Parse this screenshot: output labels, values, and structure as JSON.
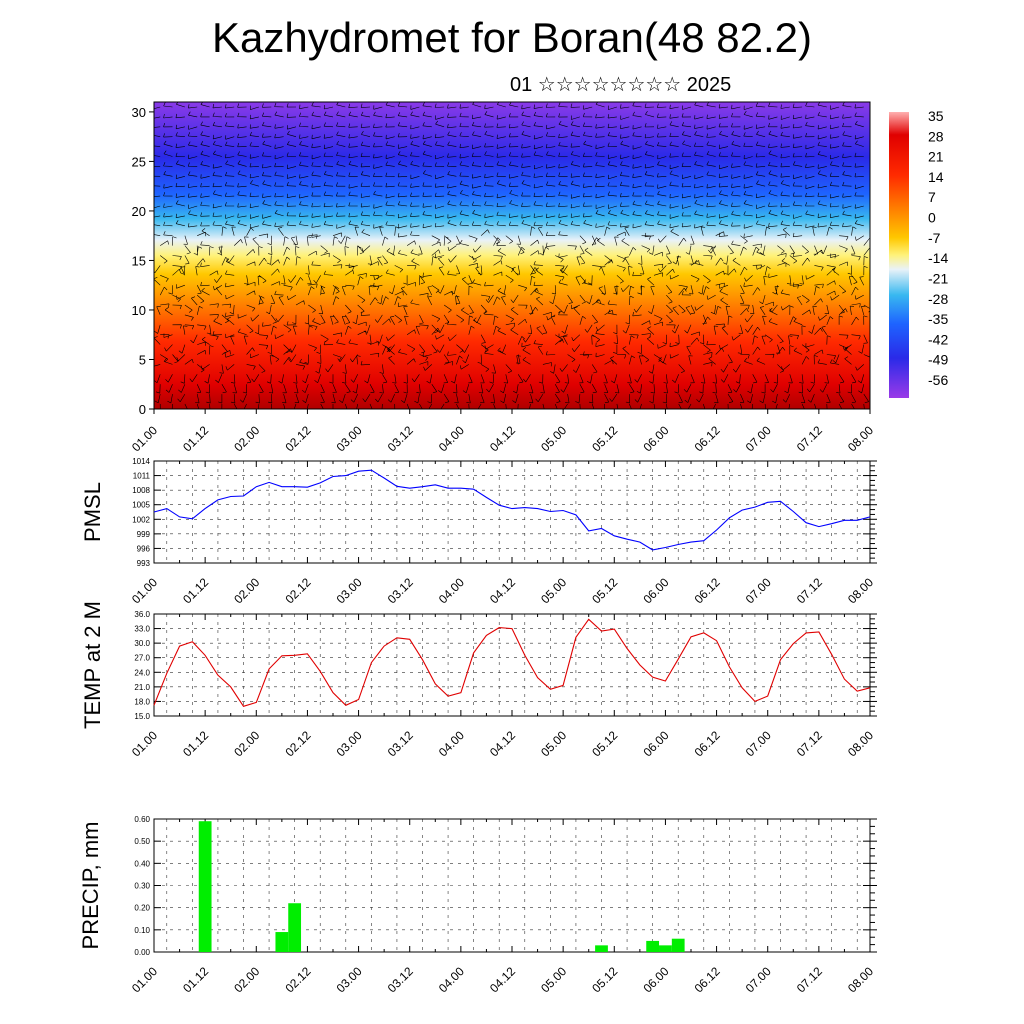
{
  "header": {
    "title": "Kazhydromet for Boran(48 82.2)",
    "subtitle": "01 ☆☆☆☆☆☆☆☆ 2025"
  },
  "colors": {
    "pmsl_line": "#0000ff",
    "temp_line": "#e00000",
    "precip_bar": "#00ee00"
  },
  "chart_data": [
    {
      "id": "cross-section",
      "type": "heatmap",
      "title": "",
      "xlabel": "",
      "ylabel": "",
      "x_ticks": [
        "01.00",
        "01.12",
        "02.00",
        "02.12",
        "03.00",
        "03.12",
        "04.00",
        "04.12",
        "05.00",
        "05.12",
        "06.00",
        "06.12",
        "07.00",
        "07.12",
        "08.00"
      ],
      "y_ticks": [
        0,
        5,
        10,
        15,
        20,
        25,
        30
      ],
      "ylim": [
        0,
        31
      ],
      "colorbar_labels": [
        "35",
        "28",
        "21",
        "14",
        "7",
        "0",
        "-7",
        "-14",
        "-21",
        "-28",
        "-35",
        "-42",
        "-49",
        "-56"
      ],
      "overlay": "wind-barbs"
    },
    {
      "id": "pmsl",
      "type": "line",
      "ylabel": "PMSL",
      "y_ticks": [
        "1014",
        "1011",
        "1008",
        "1005",
        "1002",
        "999",
        "996",
        "993"
      ],
      "ylim": [
        993,
        1014
      ],
      "x_ticks": [
        "01.00",
        "01.12",
        "02.00",
        "02.12",
        "03.00",
        "03.12",
        "04.00",
        "04.12",
        "05.00",
        "05.12",
        "06.00",
        "06.12",
        "07.00",
        "07.12",
        "08.00"
      ],
      "x_step_hours": 3,
      "values": [
        1003.5,
        1004.2,
        1002.5,
        1002.1,
        1004.2,
        1006,
        1006.7,
        1006.8,
        1008.7,
        1009.6,
        1008.7,
        1008.7,
        1008.6,
        1009.5,
        1010.8,
        1011,
        1011.9,
        1012.1,
        1010.5,
        1008.8,
        1008.4,
        1008.7,
        1009.1,
        1008.4,
        1008.4,
        1008.2,
        1006.5,
        1004.9,
        1004.2,
        1004.4,
        1004.2,
        1003.6,
        1003.8,
        1002.9,
        999.6,
        1000.1,
        998.6,
        997.9,
        997.3,
        995.7,
        996.2,
        996.8,
        997.3,
        997.6,
        999.8,
        1002.3,
        1003.9,
        1004.5,
        1005.5,
        1005.7,
        1003.6,
        1001.3,
        1000.5,
        1001.1,
        1001.8,
        1001.8,
        1002.5
      ]
    },
    {
      "id": "temp",
      "type": "line",
      "ylabel": "TEMP at 2 M",
      "y_ticks": [
        "36.0",
        "33.0",
        "30.0",
        "27.0",
        "24.0",
        "21.0",
        "18.0",
        "15.0"
      ],
      "ylim": [
        15,
        36
      ],
      "x_ticks": [
        "01.00",
        "01.12",
        "02.00",
        "02.12",
        "03.00",
        "03.12",
        "04.00",
        "04.12",
        "05.00",
        "05.12",
        "06.00",
        "06.12",
        "07.00",
        "07.12",
        "08.00"
      ],
      "x_step_hours": 3,
      "values": [
        17.2,
        23.8,
        29.4,
        30.3,
        27.5,
        23.4,
        21,
        17,
        17.8,
        24.7,
        27.4,
        27.5,
        27.8,
        24.2,
        19.8,
        17.2,
        18.4,
        26,
        29.4,
        31.1,
        30.8,
        26.6,
        21.6,
        19.1,
        19.8,
        28,
        31.6,
        33.2,
        33,
        27.5,
        22.9,
        20.5,
        21.3,
        31.2,
        34.9,
        32.5,
        32.9,
        28.9,
        25.5,
        23,
        22.2,
        26.7,
        31.3,
        32.1,
        30.5,
        25.1,
        20.8,
        18,
        19.1,
        26.6,
        29.9,
        32.1,
        32.3,
        27.7,
        22.6,
        20.1,
        20.8
      ]
    },
    {
      "id": "precip",
      "type": "bar",
      "ylabel": "PRECIP, mm",
      "y_ticks": [
        "0.60",
        "0.50",
        "0.40",
        "0.30",
        "0.20",
        "0.10",
        "0.00"
      ],
      "ylim": [
        0,
        0.6
      ],
      "x_ticks": [
        "01.00",
        "01.12",
        "02.00",
        "02.12",
        "03.00",
        "03.12",
        "04.00",
        "04.12",
        "05.00",
        "05.12",
        "06.00",
        "06.12",
        "07.00",
        "07.12",
        "08.00"
      ],
      "x_step_hours": 3,
      "bars": [
        {
          "x": 4,
          "value": 0.59
        },
        {
          "x": 10,
          "value": 0.09
        },
        {
          "x": 11,
          "value": 0.22
        },
        {
          "x": 35,
          "value": 0.03
        },
        {
          "x": 39,
          "value": 0.05
        },
        {
          "x": 40,
          "value": 0.03
        },
        {
          "x": 41,
          "value": 0.06
        }
      ]
    }
  ]
}
